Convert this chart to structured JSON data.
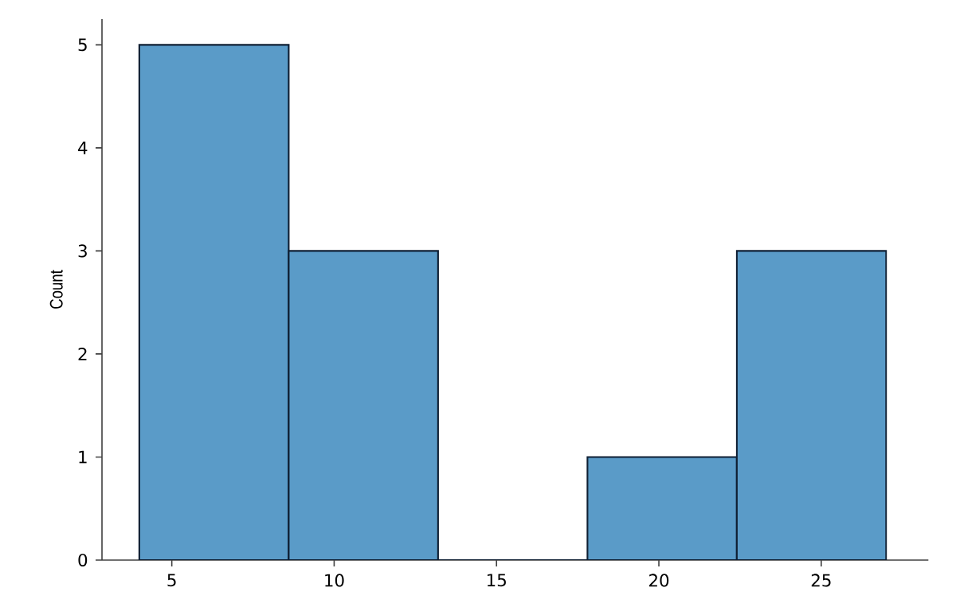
{
  "chart_data": {
    "type": "histogram",
    "ylabel": "Count",
    "bins": [
      4,
      8.6,
      13.2,
      17.8,
      22.4,
      27
    ],
    "values": [
      5,
      3,
      0,
      1,
      3
    ],
    "color": "#5a9bc8",
    "xlim": [
      2.85,
      28.3
    ],
    "ylim": [
      0,
      5.25
    ],
    "xticks": [
      5,
      10,
      15,
      20,
      25
    ],
    "yticks": [
      0,
      1,
      2,
      3,
      4,
      5
    ],
    "grid": false
  }
}
